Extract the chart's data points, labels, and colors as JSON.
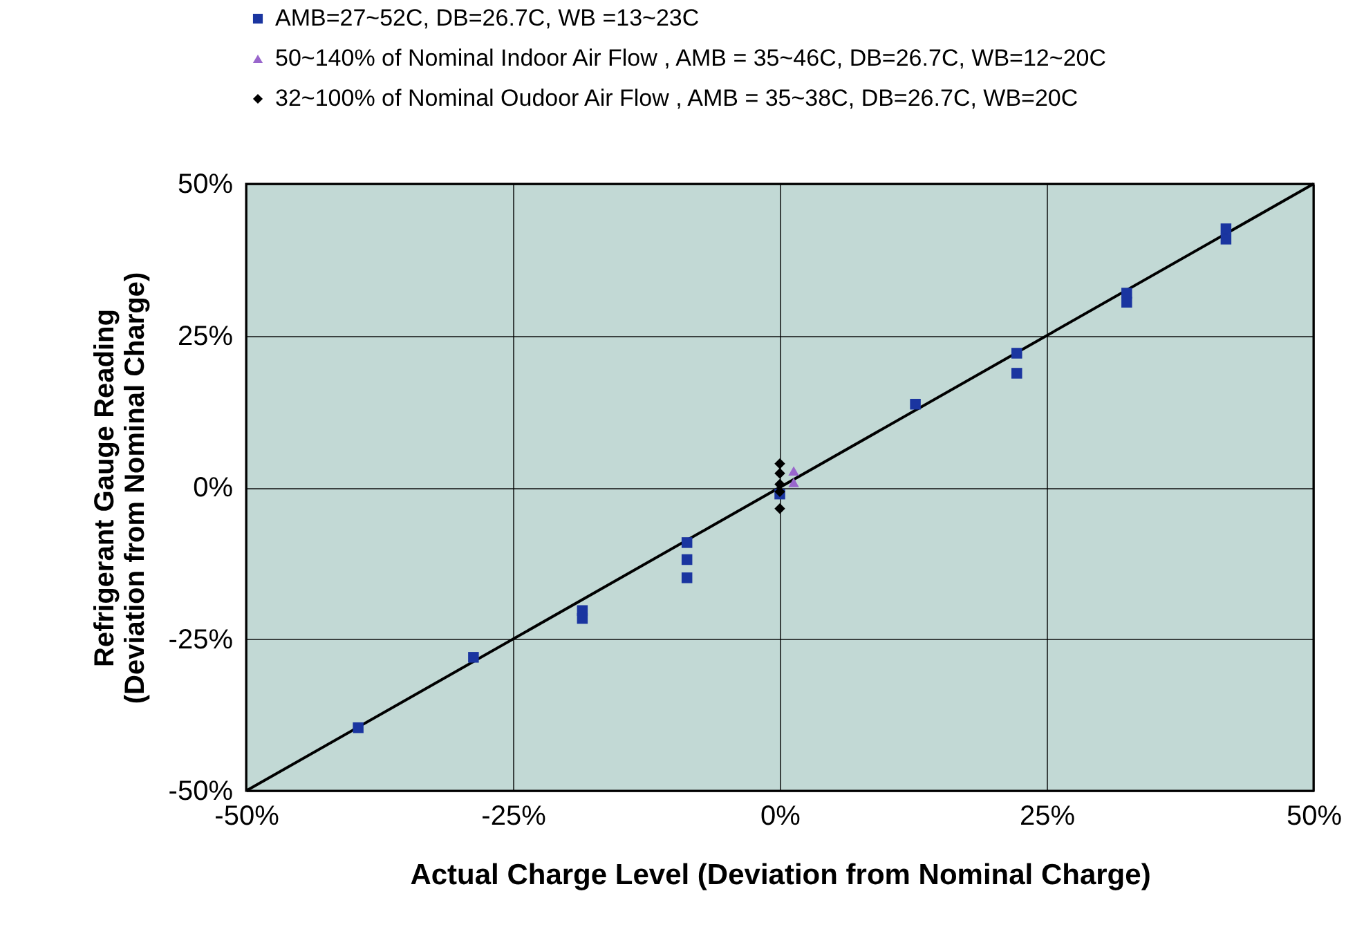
{
  "chart_data": {
    "type": "scatter",
    "xlabel": "Actual Charge Level (Deviation from Nominal Charge)",
    "ylabel": "Refrigerant Gauge Reading\n(Deviation from Nominal Charge)",
    "xlim": [
      -50,
      50
    ],
    "ylim": [
      -50,
      50
    ],
    "xticks": [
      {
        "value": -50,
        "label": "-50%"
      },
      {
        "value": -25,
        "label": "-25%"
      },
      {
        "value": 0,
        "label": "0%"
      },
      {
        "value": 25,
        "label": "25%"
      },
      {
        "value": 50,
        "label": "50%"
      }
    ],
    "yticks": [
      {
        "value": -50,
        "label": "-50%"
      },
      {
        "value": -25,
        "label": "-25%"
      },
      {
        "value": 0,
        "label": "0%"
      },
      {
        "value": 25,
        "label": "25%"
      },
      {
        "value": 50,
        "label": "50%"
      }
    ],
    "grid": true,
    "legend": "top left",
    "series": [
      {
        "name": "AMB=27~52C, DB=26.7C, WB =13~23C",
        "marker": "square",
        "color": "#1a35a0",
        "x": [
          -39.5,
          -28.7,
          -18.5,
          -18.5,
          -8.7,
          -8.7,
          -8.7,
          0,
          12.7,
          22.2,
          22.2,
          32.5,
          32.5,
          41.8,
          41.8
        ],
        "values": [
          -39.6,
          -28.0,
          -20.3,
          -21.6,
          -9.1,
          -11.9,
          -14.9,
          -1.1,
          13.7,
          22.1,
          18.8,
          32.0,
          30.5,
          42.6,
          40.9
        ]
      },
      {
        "name": "50~140% of Nominal Indoor Air Flow , AMB = 35~46C, DB=26.7C, WB=12~20C",
        "marker": "triangle",
        "color": "#9966cc",
        "x": [
          1.3,
          1.3
        ],
        "values": [
          2.7,
          0.8
        ]
      },
      {
        "name": "32~100% of Nominal Oudoor Air Flow , AMB = 35~38C, DB=26.7C, WB=20C",
        "marker": "diamond",
        "color": "#000000",
        "x": [
          0,
          0,
          0,
          0,
          0
        ],
        "values": [
          3.9,
          2.3,
          0.5,
          -0.7,
          -3.5
        ]
      },
      {
        "type": "line",
        "color": "#000000",
        "x": [
          -50,
          50
        ],
        "values": [
          -50,
          50
        ]
      }
    ]
  }
}
